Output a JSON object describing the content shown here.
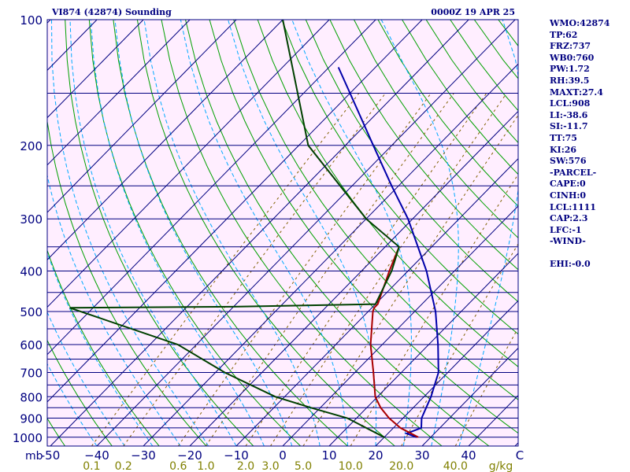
{
  "title_left": "VI874 (42874) Sounding",
  "title_right": "0000Z 19 APR 25",
  "pressure_unit": "mb",
  "mixing_ratio_unit": "g/kg",
  "indices": [
    "WMO:42874",
    "TP:62",
    "FRZ:737",
    "WB0:760",
    "PW:1.72",
    "RH:39.5",
    "MAXT:27.4",
    "LCL:908",
    "LI:-38.6",
    "SI:-11.7",
    "TT:75",
    "KI:26",
    "SW:576",
    "-PARCEL-",
    "CAPE:0",
    "CINH:0",
    "LCL:1111",
    "CAP:2.3",
    "LFC:-1",
    "-WIND-",
    "",
    "EHI:-0.0"
  ],
  "colors": {
    "background": "#ffeeff",
    "isobar": "#000080",
    "isotherm": "#000080",
    "dry_adiabat": "#00a000",
    "moist_adiabat": "#00aaff",
    "mixing_ratio": "#806000",
    "temperature": "#aa0000",
    "dewpoint": "#004000",
    "parcel": "#0000aa",
    "labels": "#000080",
    "mixing_labels": "#808000"
  },
  "chart_data": {
    "type": "skew-t",
    "pressure_ticks": [
      100,
      200,
      300,
      400,
      500,
      600,
      700,
      800,
      900,
      1000
    ],
    "pressure_levels": [
      100,
      150,
      200,
      250,
      300,
      350,
      400,
      450,
      500,
      550,
      600,
      650,
      700,
      750,
      800,
      850,
      900,
      950,
      1000,
      1050
    ],
    "temperature_ticks": [
      -50,
      -40,
      -30,
      -20,
      -10,
      0,
      10,
      20,
      30,
      40
    ],
    "temperature_tick_labels": [
      "-50",
      "−40",
      "−30",
      "−20",
      "−10",
      "0",
      "10",
      "20",
      "30",
      "40"
    ],
    "temperature_tick_ends": [
      "C"
    ],
    "mixing_ratio_labels": [
      "0.1",
      "0.2",
      "0.6",
      "1.0",
      "2.0",
      "3.0",
      "5.0",
      "10.0",
      "20.0",
      "40.0"
    ],
    "mixing_ratio_values": [
      0.1,
      0.2,
      0.6,
      1.0,
      2.0,
      3.0,
      5.0,
      10.0,
      20.0,
      40.0
    ],
    "temperature_profile": [
      {
        "p": 1000,
        "t": 27.3
      },
      {
        "p": 950,
        "t": 21.5
      },
      {
        "p": 900,
        "t": 17.0
      },
      {
        "p": 850,
        "t": 13.0
      },
      {
        "p": 800,
        "t": 9.5
      },
      {
        "p": 700,
        "t": 4.0
      },
      {
        "p": 600,
        "t": -2.5
      },
      {
        "p": 500,
        "t": -9.0
      },
      {
        "p": 490,
        "t": -9.5
      },
      {
        "p": 480,
        "t": -9.5
      },
      {
        "p": 400,
        "t": -14.0
      },
      {
        "p": 350,
        "t": -17.0
      }
    ],
    "dewpoint_profile": [
      {
        "p": 1000,
        "t": 20.0
      },
      {
        "p": 900,
        "t": 8.0
      },
      {
        "p": 850,
        "t": -2.0
      },
      {
        "p": 800,
        "t": -12.0
      },
      {
        "p": 700,
        "t": -28.0
      },
      {
        "p": 600,
        "t": -44.0
      },
      {
        "p": 490,
        "t": -75.0
      },
      {
        "p": 487,
        "t": -40.0
      },
      {
        "p": 480,
        "t": -10.0
      },
      {
        "p": 400,
        "t": -13.5
      },
      {
        "p": 350,
        "t": -17.0
      },
      {
        "p": 300,
        "t": -30.0
      },
      {
        "p": 200,
        "t": -58.0
      },
      {
        "p": 100,
        "t": -90.0
      }
    ],
    "parcel_profile": [
      {
        "p": 1000,
        "t": 27.0
      },
      {
        "p": 980,
        "t": 24.0
      },
      {
        "p": 950,
        "t": 26.0
      },
      {
        "p": 900,
        "t": 24.0
      },
      {
        "p": 800,
        "t": 21.5
      },
      {
        "p": 700,
        "t": 18.0
      },
      {
        "p": 600,
        "t": 12.0
      },
      {
        "p": 500,
        "t": 4.5
      },
      {
        "p": 400,
        "t": -6.0
      },
      {
        "p": 300,
        "t": -21.0
      },
      {
        "p": 250,
        "t": -31.5
      },
      {
        "p": 200,
        "t": -44.0
      },
      {
        "p": 150,
        "t": -60.0
      },
      {
        "p": 130,
        "t": -68.0
      }
    ]
  }
}
